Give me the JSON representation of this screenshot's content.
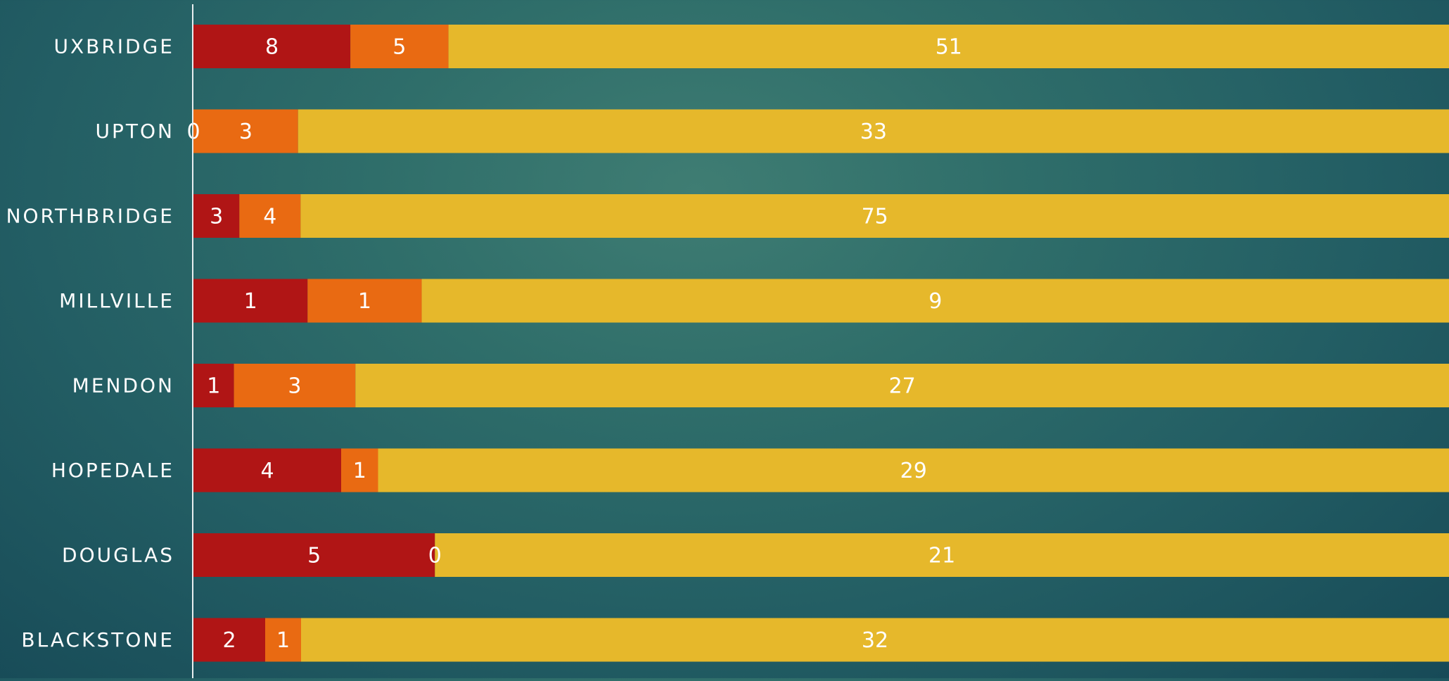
{
  "chart_data": {
    "type": "bar",
    "orientation": "horizontal",
    "stacked": "percent",
    "title": "",
    "xlabel": "",
    "ylabel": "",
    "categories": [
      "UXBRIDGE",
      "UPTON",
      "NORTHBRIDGE",
      "MILLVILLE",
      "MENDON",
      "HOPEDALE",
      "DOUGLAS",
      "BLACKSTONE"
    ],
    "series": [
      {
        "color": "#b01515",
        "values": [
          8,
          0,
          3,
          1,
          1,
          4,
          5,
          2
        ]
      },
      {
        "color": "#e96a12",
        "values": [
          5,
          3,
          4,
          1,
          3,
          1,
          0,
          1
        ]
      },
      {
        "color": "#e6b82b",
        "values": [
          51,
          33,
          75,
          9,
          27,
          29,
          21,
          32
        ]
      }
    ],
    "data_labels": true,
    "legend": "none",
    "grid": false,
    "text_color": "#ffffff"
  }
}
